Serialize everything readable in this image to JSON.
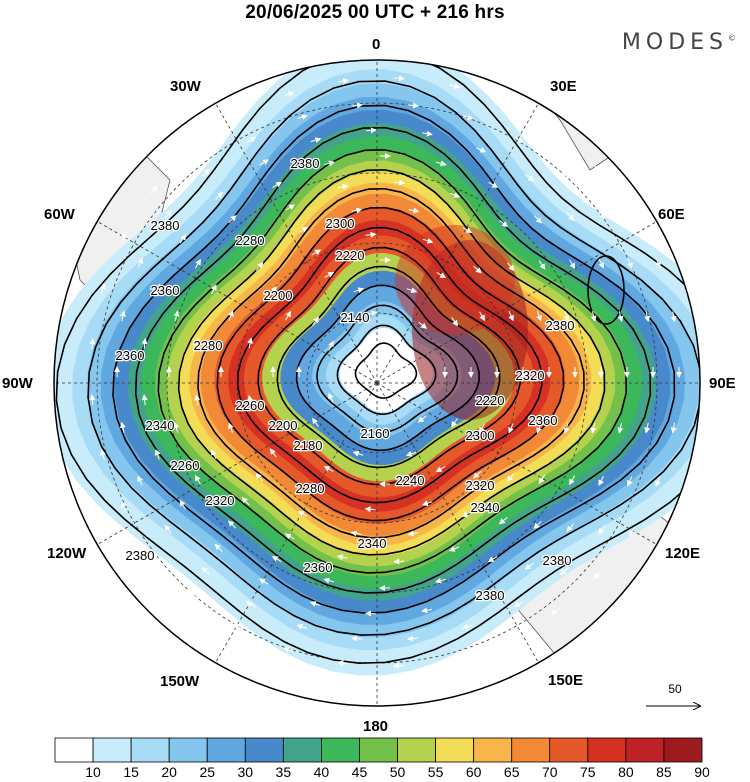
{
  "header": {
    "title": "20/06/2025  00 UTC  + 216 hrs",
    "brand": "MODES"
  },
  "map": {
    "projection": "south-polar-stereographic",
    "lon_labels": {
      "top": "0",
      "top_right": "30E",
      "right_upper": "60E",
      "right": "90E",
      "right_lower": "120E",
      "bottom_right": "150E",
      "bottom": "180",
      "bottom_left": "150W",
      "left_lower": "120W",
      "left": "90W",
      "left_upper": "60W",
      "top_left": "30W"
    },
    "contour_labels": [
      "2380",
      "2380",
      "2380",
      "2380",
      "2380",
      "2380",
      "2360",
      "2360",
      "2360",
      "2360",
      "2340",
      "2340",
      "2340",
      "2320",
      "2320",
      "2320",
      "2300",
      "2300",
      "2280",
      "2280",
      "2280",
      "2260",
      "2260",
      "2240",
      "2220",
      "2220",
      "2200",
      "2200",
      "2180",
      "2160",
      "2140"
    ],
    "vector_reference": "50",
    "colors": {
      "land": "#f0f0f0",
      "coast": "#555555",
      "contour": "#000000",
      "arrow": "#ffffff"
    }
  },
  "colorbar": {
    "ticks": [
      "10",
      "15",
      "20",
      "25",
      "30",
      "35",
      "40",
      "45",
      "50",
      "55",
      "60",
      "65",
      "70",
      "75",
      "80",
      "85",
      "90"
    ],
    "colors": [
      "#ffffff",
      "#c9ecfa",
      "#a8dcf6",
      "#84c6ee",
      "#62a8e0",
      "#4889cc",
      "#43a48c",
      "#3cb85a",
      "#73c04b",
      "#b5d24e",
      "#f3dc56",
      "#f8b54a",
      "#f18937",
      "#e5582a",
      "#d63224",
      "#be2126",
      "#9d1b1f"
    ]
  }
}
